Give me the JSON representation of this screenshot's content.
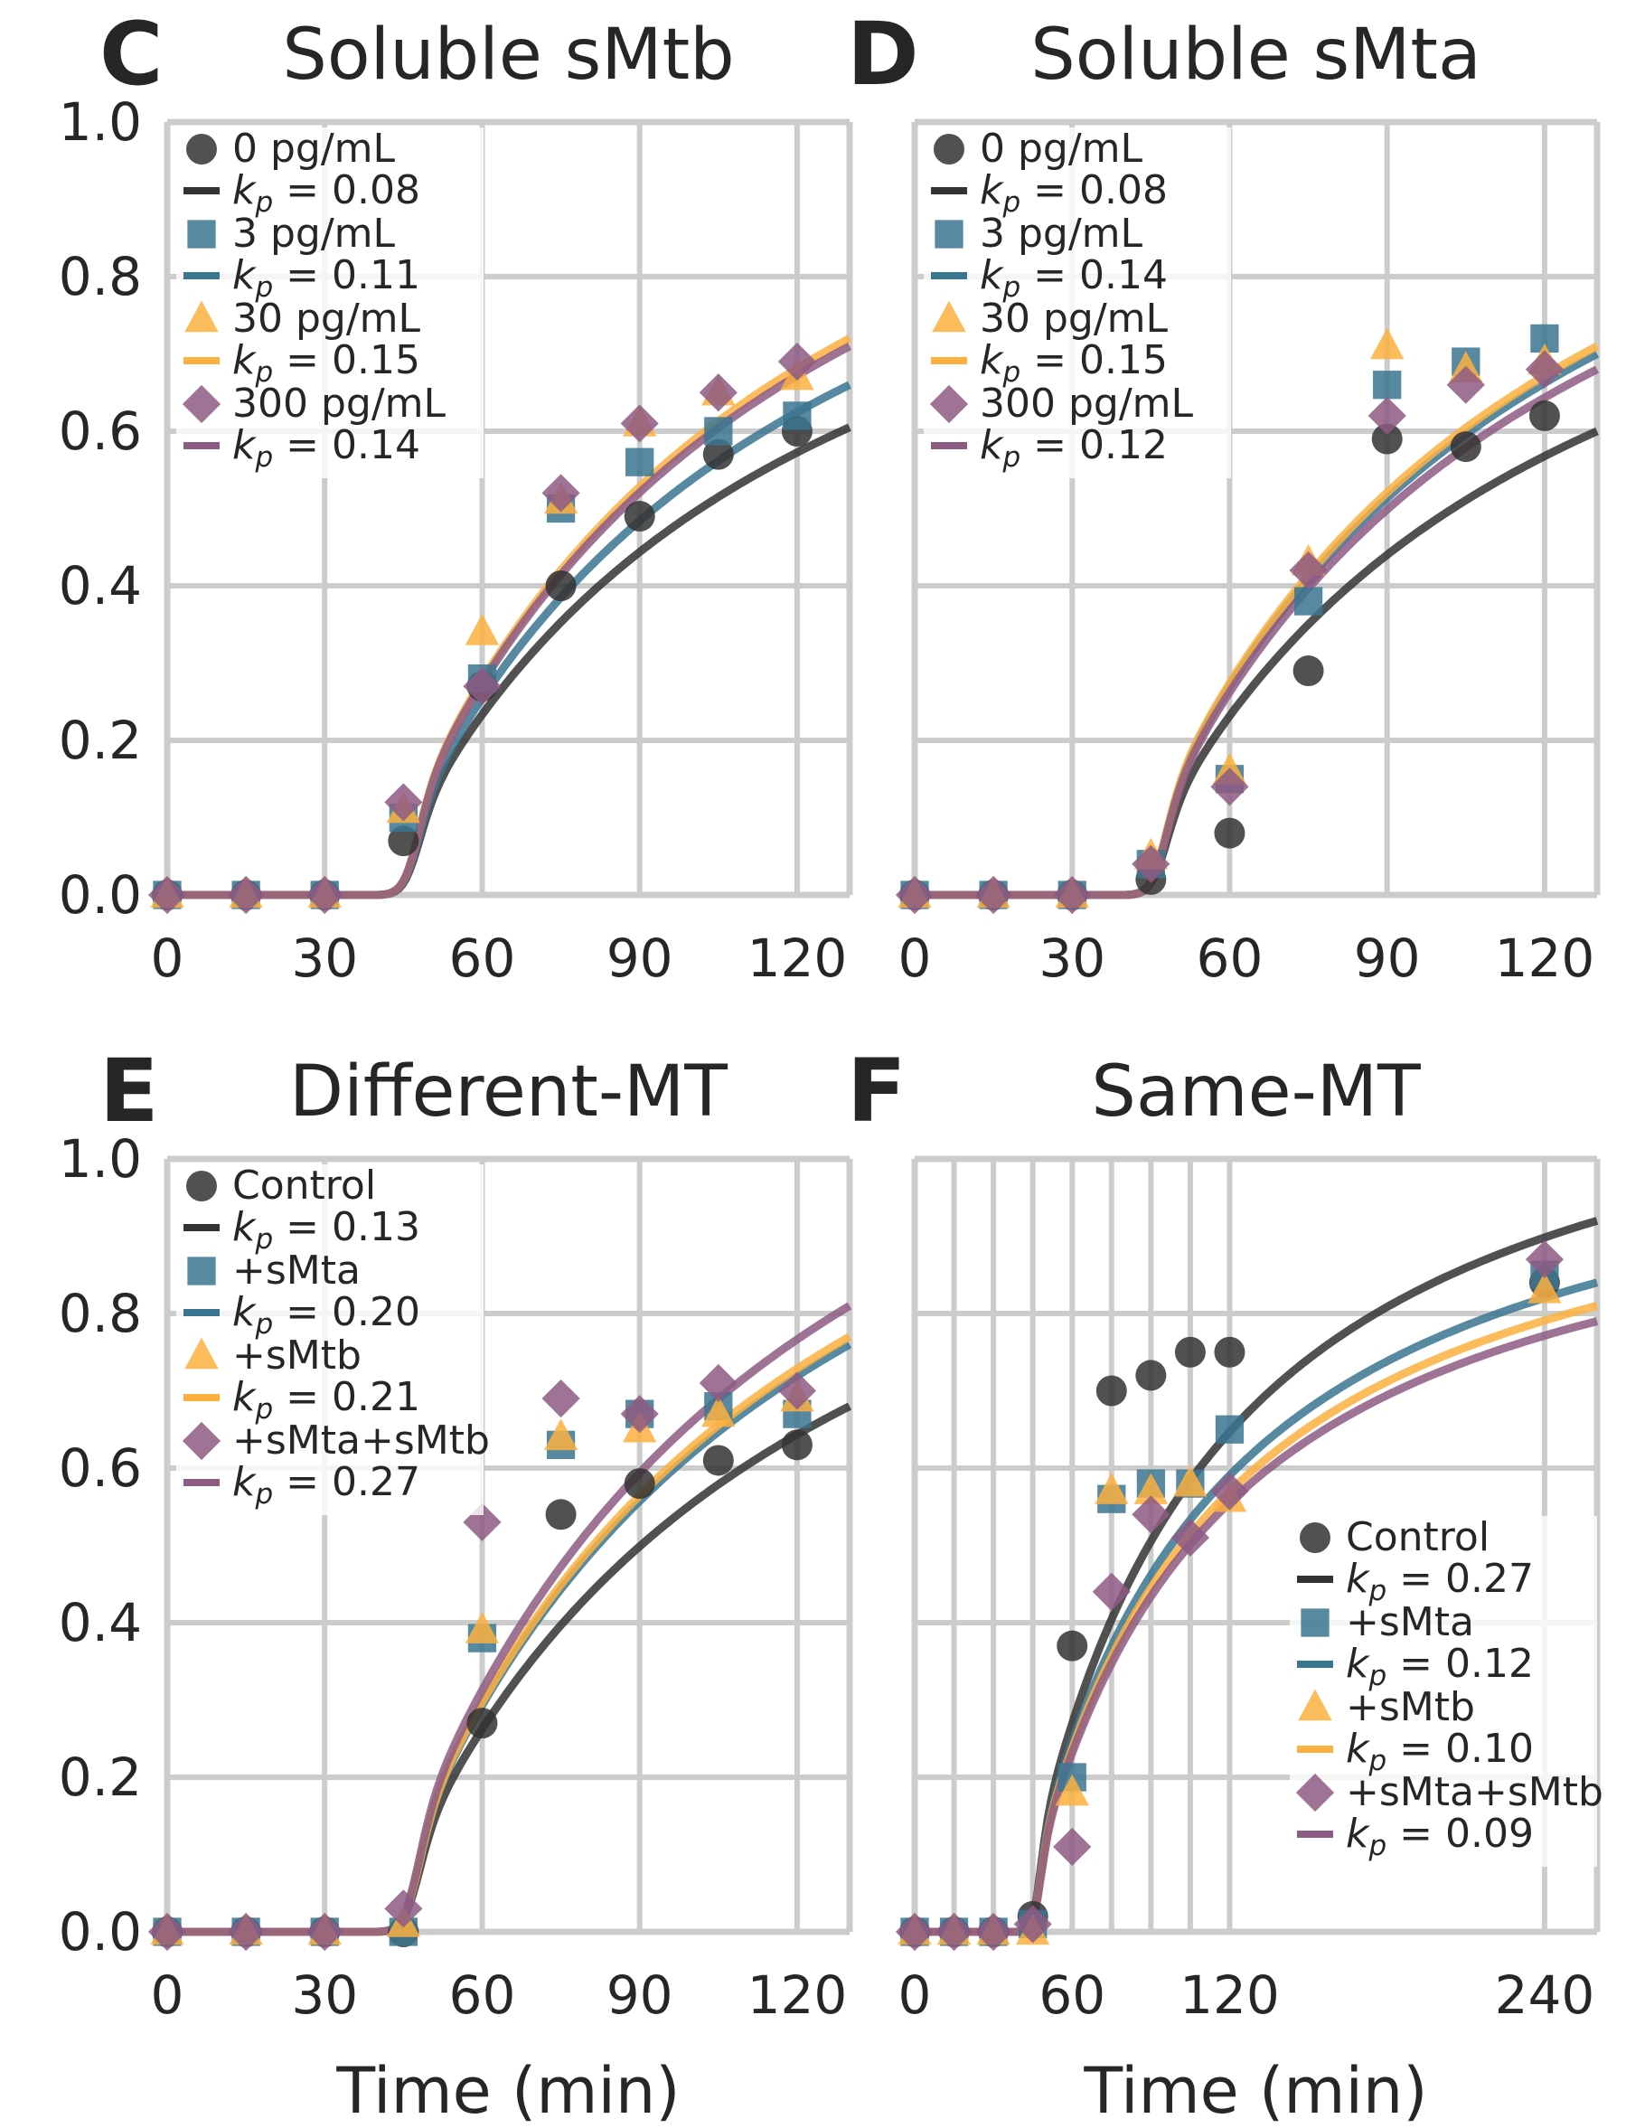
{
  "colors": {
    "control": "#333333",
    "c1": "#3a7690",
    "c2": "#fbb040",
    "c3": "#8e5b82",
    "grid": "#cccccc",
    "text": "#262626"
  },
  "chart_data": [
    {
      "type": "scatter",
      "panel_label": "C",
      "title": "Soluble sMtb",
      "xlabel": "",
      "ylabel": "",
      "xlim": [
        0,
        130
      ],
      "ylim": [
        0,
        1.0
      ],
      "xticks": [
        0,
        30,
        60,
        90,
        120
      ],
      "yticks": [
        0.0,
        0.2,
        0.4,
        0.6,
        0.8,
        1.0
      ],
      "show_yticklabels": true,
      "grid": true,
      "legend_position": "top-left",
      "x": [
        0,
        15,
        30,
        45,
        60,
        75,
        90,
        105,
        120
      ],
      "series": [
        {
          "name": "0 pg/mL",
          "marker": "circle",
          "fit_label": "0.08",
          "fit_end": 0.605,
          "values": [
            0,
            0,
            0,
            0.07,
            0.27,
            0.4,
            0.49,
            0.57,
            0.6
          ]
        },
        {
          "name": "3 pg/mL",
          "marker": "square",
          "fit_label": "0.11",
          "fit_end": 0.66,
          "values": [
            0,
            0,
            0,
            0.1,
            0.28,
            0.5,
            0.56,
            0.6,
            0.62
          ]
        },
        {
          "name": "30 pg/mL",
          "marker": "triangle",
          "fit_label": "0.15",
          "fit_end": 0.72,
          "values": [
            0,
            0,
            0,
            0.11,
            0.34,
            0.51,
            0.61,
            0.65,
            0.67
          ]
        },
        {
          "name": "300 pg/mL",
          "marker": "diamond",
          "fit_label": "0.14",
          "fit_end": 0.71,
          "values": [
            0,
            0,
            0,
            0.12,
            0.27,
            0.52,
            0.61,
            0.65,
            0.69
          ]
        }
      ]
    },
    {
      "type": "scatter",
      "panel_label": "D",
      "title": "Soluble sMta",
      "xlabel": "",
      "ylabel": "",
      "xlim": [
        0,
        130
      ],
      "ylim": [
        0,
        1.0
      ],
      "xticks": [
        0,
        30,
        60,
        90,
        120
      ],
      "yticks": [
        0.0,
        0.2,
        0.4,
        0.6,
        0.8,
        1.0
      ],
      "show_yticklabels": false,
      "grid": true,
      "legend_position": "top-left",
      "x": [
        0,
        15,
        30,
        45,
        60,
        75,
        90,
        105,
        120
      ],
      "series": [
        {
          "name": "0 pg/mL",
          "marker": "circle",
          "fit_label": "0.08",
          "fit_end": 0.6,
          "values": [
            0,
            0,
            0,
            0.02,
            0.08,
            0.29,
            0.59,
            0.58,
            0.62
          ]
        },
        {
          "name": "3 pg/mL",
          "marker": "square",
          "fit_label": "0.14",
          "fit_end": 0.7,
          "values": [
            0,
            0,
            0,
            0.04,
            0.15,
            0.38,
            0.66,
            0.69,
            0.72
          ]
        },
        {
          "name": "30 pg/mL",
          "marker": "triangle",
          "fit_label": "0.15",
          "fit_end": 0.71,
          "values": [
            0,
            0,
            0,
            0.05,
            0.16,
            0.43,
            0.71,
            0.68,
            0.69
          ]
        },
        {
          "name": "300 pg/mL",
          "marker": "diamond",
          "fit_label": "0.12",
          "fit_end": 0.68,
          "values": [
            0,
            0,
            0,
            0.04,
            0.14,
            0.42,
            0.62,
            0.66,
            0.68
          ]
        }
      ]
    },
    {
      "type": "scatter",
      "panel_label": "E",
      "title": "Different-MT",
      "xlabel": "Time (min)",
      "ylabel": "",
      "xlim": [
        0,
        130
      ],
      "ylim": [
        0,
        1.0
      ],
      "xticks": [
        0,
        30,
        60,
        90,
        120
      ],
      "yticks": [
        0.0,
        0.2,
        0.4,
        0.6,
        0.8,
        1.0
      ],
      "show_yticklabels": true,
      "grid": true,
      "legend_position": "top-left",
      "x": [
        0,
        15,
        30,
        45,
        60,
        75,
        90,
        105,
        120
      ],
      "series": [
        {
          "name": "Control",
          "marker": "circle",
          "fit_label": "0.13",
          "fit_end": 0.68,
          "values": [
            0,
            0,
            0,
            0,
            0.27,
            0.54,
            0.58,
            0.61,
            0.63
          ]
        },
        {
          "name": "+sMta",
          "marker": "square",
          "fit_label": "0.20",
          "fit_end": 0.76,
          "values": [
            0,
            0,
            0,
            0,
            0.38,
            0.63,
            0.67,
            0.68,
            0.67
          ]
        },
        {
          "name": "+sMtb",
          "marker": "triangle",
          "fit_label": "0.21",
          "fit_end": 0.77,
          "values": [
            0,
            0,
            0,
            0.01,
            0.39,
            0.64,
            0.65,
            0.67,
            0.69
          ]
        },
        {
          "name": "+sMta+sMtb",
          "marker": "diamond",
          "fit_label": "0.27",
          "fit_end": 0.81,
          "values": [
            0,
            0,
            0,
            0.03,
            0.53,
            0.69,
            0.67,
            0.71,
            0.7
          ]
        }
      ]
    },
    {
      "type": "scatter",
      "panel_label": "F",
      "title": "Same-MT",
      "xlabel": "Time (min)",
      "ylabel": "",
      "xlim": [
        0,
        260
      ],
      "ylim": [
        0,
        1.0
      ],
      "xticks": [
        0,
        60,
        120,
        240
      ],
      "extra_grid_x": [
        15,
        30,
        45,
        75,
        90,
        105
      ],
      "yticks": [
        0.0,
        0.2,
        0.4,
        0.6,
        0.8,
        1.0
      ],
      "show_yticklabels": false,
      "grid": true,
      "legend_position": "bottom-right",
      "x": [
        0,
        15,
        30,
        45,
        60,
        75,
        90,
        105,
        120,
        240
      ],
      "series": [
        {
          "name": "Control",
          "marker": "circle",
          "fit_label": "0.27",
          "fit_end": 0.92,
          "values": [
            0,
            0,
            0,
            0.02,
            0.37,
            0.7,
            0.72,
            0.75,
            0.75,
            0.84
          ]
        },
        {
          "name": "+sMta",
          "marker": "square",
          "fit_label": "0.12",
          "fit_end": 0.84,
          "values": [
            0,
            0,
            0,
            0.01,
            0.2,
            0.56,
            0.58,
            0.58,
            0.65,
            0.85
          ]
        },
        {
          "name": "+sMtb",
          "marker": "triangle",
          "fit_label": "0.10",
          "fit_end": 0.81,
          "values": [
            0,
            0,
            0,
            0,
            0.18,
            0.57,
            0.57,
            0.58,
            0.56,
            0.83
          ]
        },
        {
          "name": "+sMta+sMtb",
          "marker": "diamond",
          "fit_label": "0.09",
          "fit_end": 0.79,
          "values": [
            0,
            0,
            0,
            0.01,
            0.11,
            0.44,
            0.54,
            0.51,
            0.57,
            0.87
          ]
        }
      ]
    }
  ]
}
